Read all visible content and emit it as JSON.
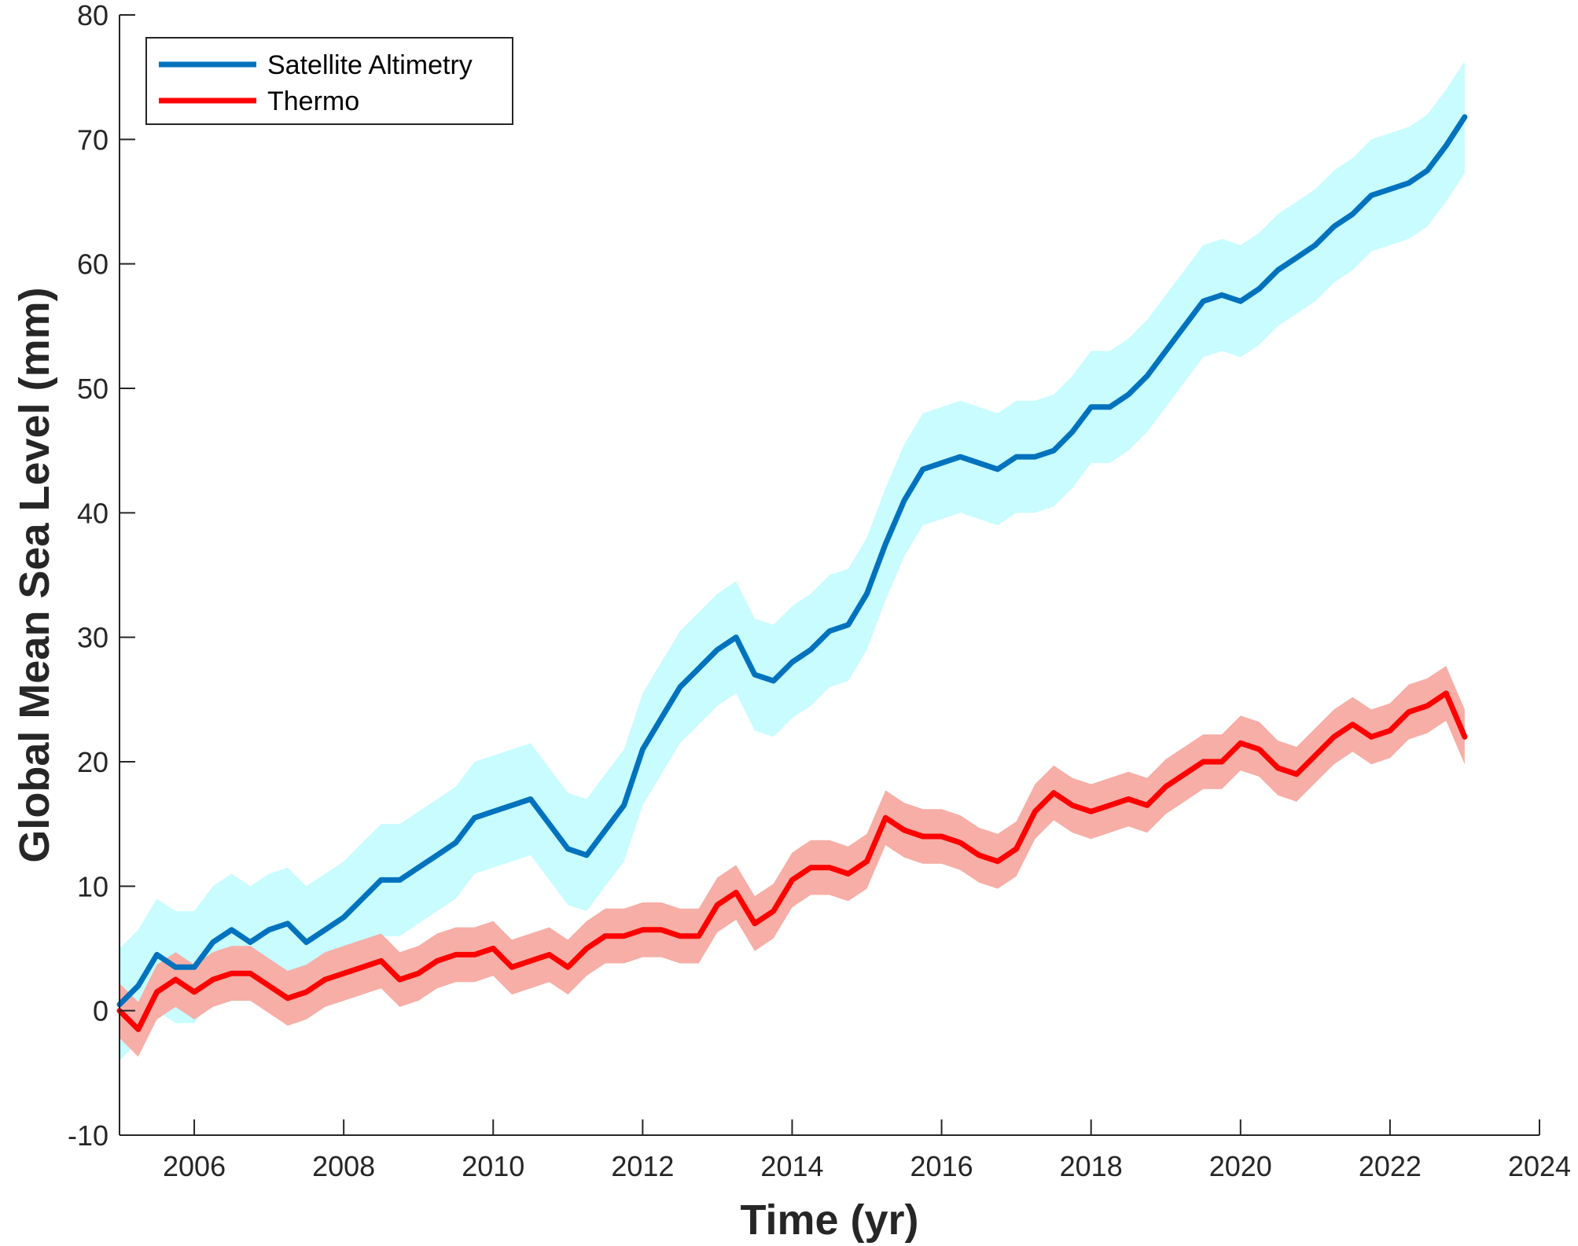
{
  "chart_data": {
    "type": "line",
    "title": "",
    "xlabel": "Time (yr)",
    "ylabel": "Global Mean Sea Level (mm)",
    "xlim": [
      2005,
      2024
    ],
    "ylim": [
      -10,
      80
    ],
    "xticks": [
      2006,
      2008,
      2010,
      2012,
      2014,
      2016,
      2018,
      2020,
      2022,
      2024
    ],
    "yticks": [
      -10,
      0,
      10,
      20,
      30,
      40,
      50,
      60,
      70,
      80
    ],
    "grid": false,
    "legend_position": "top-left",
    "series": [
      {
        "name": "Satellite Altimetry",
        "color": "#0072BD",
        "band_color": "#C8FCFF",
        "band_halfwidth": 4.5,
        "x": [
          2005.0,
          2005.25,
          2005.5,
          2005.75,
          2006.0,
          2006.25,
          2006.5,
          2006.75,
          2007.0,
          2007.25,
          2007.5,
          2007.75,
          2008.0,
          2008.25,
          2008.5,
          2008.75,
          2009.0,
          2009.25,
          2009.5,
          2009.75,
          2010.0,
          2010.25,
          2010.5,
          2010.75,
          2011.0,
          2011.25,
          2011.5,
          2011.75,
          2012.0,
          2012.25,
          2012.5,
          2012.75,
          2013.0,
          2013.25,
          2013.5,
          2013.75,
          2014.0,
          2014.25,
          2014.5,
          2014.75,
          2015.0,
          2015.25,
          2015.5,
          2015.75,
          2016.0,
          2016.25,
          2016.5,
          2016.75,
          2017.0,
          2017.25,
          2017.5,
          2017.75,
          2018.0,
          2018.25,
          2018.5,
          2018.75,
          2019.0,
          2019.25,
          2019.5,
          2019.75,
          2020.0,
          2020.25,
          2020.5,
          2020.75,
          2021.0,
          2021.25,
          2021.5,
          2021.75,
          2022.0,
          2022.25,
          2022.5,
          2022.75,
          2023.0
        ],
        "values": [
          0.5,
          2.0,
          4.5,
          3.5,
          3.5,
          5.5,
          6.5,
          5.5,
          6.5,
          7.0,
          5.5,
          6.5,
          7.5,
          9.0,
          10.5,
          10.5,
          11.5,
          12.5,
          13.5,
          15.5,
          16.0,
          16.5,
          17.0,
          15.0,
          13.0,
          12.5,
          14.5,
          16.5,
          21.0,
          23.5,
          26.0,
          27.5,
          29.0,
          30.0,
          27.0,
          26.5,
          28.0,
          29.0,
          30.5,
          31.0,
          33.5,
          37.5,
          41.0,
          43.5,
          44.0,
          44.5,
          44.0,
          43.5,
          44.5,
          44.5,
          45.0,
          46.5,
          48.5,
          48.5,
          49.5,
          51.0,
          53.0,
          55.0,
          57.0,
          57.5,
          57.0,
          58.0,
          59.5,
          60.5,
          61.5,
          63.0,
          64.0,
          65.5,
          66.0,
          66.5,
          67.5,
          69.5,
          71.8
        ]
      },
      {
        "name": "Thermo",
        "color": "#FF0000",
        "band_color": "#F6AEA6",
        "band_halfwidth": 2.2,
        "x": [
          2005.0,
          2005.25,
          2005.5,
          2005.75,
          2006.0,
          2006.25,
          2006.5,
          2006.75,
          2007.0,
          2007.25,
          2007.5,
          2007.75,
          2008.0,
          2008.25,
          2008.5,
          2008.75,
          2009.0,
          2009.25,
          2009.5,
          2009.75,
          2010.0,
          2010.25,
          2010.5,
          2010.75,
          2011.0,
          2011.25,
          2011.5,
          2011.75,
          2012.0,
          2012.25,
          2012.5,
          2012.75,
          2013.0,
          2013.25,
          2013.5,
          2013.75,
          2014.0,
          2014.25,
          2014.5,
          2014.75,
          2015.0,
          2015.25,
          2015.5,
          2015.75,
          2016.0,
          2016.25,
          2016.5,
          2016.75,
          2017.0,
          2017.25,
          2017.5,
          2017.75,
          2018.0,
          2018.25,
          2018.5,
          2018.75,
          2019.0,
          2019.25,
          2019.5,
          2019.75,
          2020.0,
          2020.25,
          2020.5,
          2020.75,
          2021.0,
          2021.25,
          2021.5,
          2021.75,
          2022.0,
          2022.25,
          2022.5,
          2022.75,
          2023.0
        ],
        "values": [
          0.0,
          -1.5,
          1.5,
          2.5,
          1.5,
          2.5,
          3.0,
          3.0,
          2.0,
          1.0,
          1.5,
          2.5,
          3.0,
          3.5,
          4.0,
          2.5,
          3.0,
          4.0,
          4.5,
          4.5,
          5.0,
          3.5,
          4.0,
          4.5,
          3.5,
          5.0,
          6.0,
          6.0,
          6.5,
          6.5,
          6.0,
          6.0,
          8.5,
          9.5,
          7.0,
          8.0,
          10.5,
          11.5,
          11.5,
          11.0,
          12.0,
          15.5,
          14.5,
          14.0,
          14.0,
          13.5,
          12.5,
          12.0,
          13.0,
          16.0,
          17.5,
          16.5,
          16.0,
          16.5,
          17.0,
          16.5,
          18.0,
          19.0,
          20.0,
          20.0,
          21.5,
          21.0,
          19.5,
          19.0,
          20.5,
          22.0,
          23.0,
          22.0,
          22.5,
          24.0,
          24.5,
          25.5,
          22.0
        ]
      }
    ]
  }
}
